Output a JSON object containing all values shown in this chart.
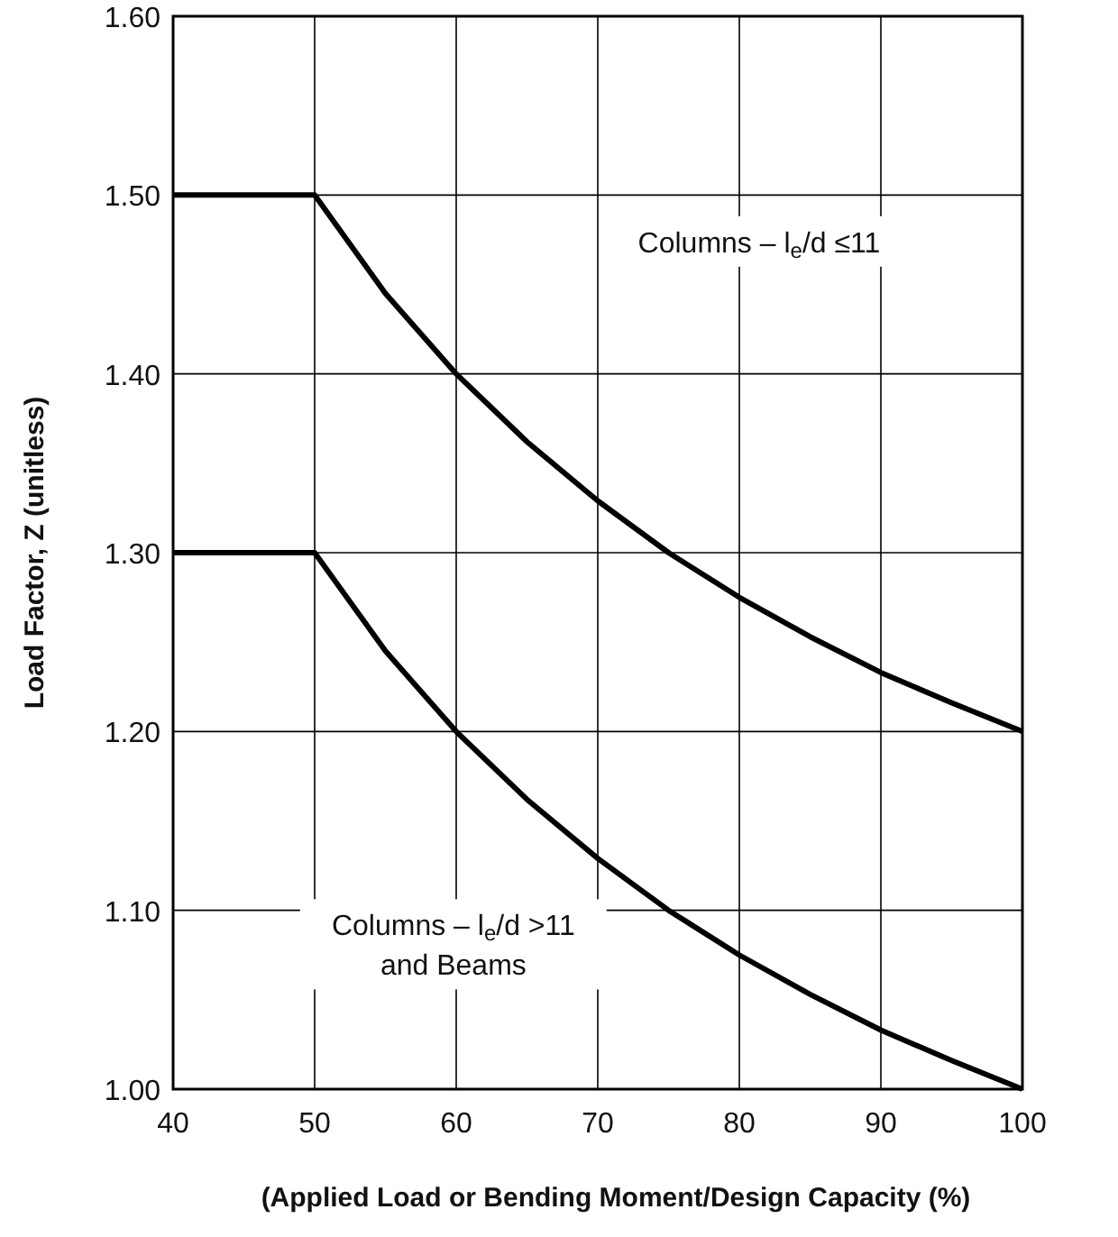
{
  "chart_data": {
    "type": "line",
    "xlabel": "(Applied Load or Bending Moment/Design Capacity (%)",
    "ylabel": "Load Factor, Z (unitless)",
    "x": [
      40,
      50,
      55,
      60,
      65,
      70,
      75,
      80,
      85,
      90,
      95,
      100
    ],
    "series": [
      {
        "color": "#000000",
        "values": [
          1.5,
          1.5,
          1.445,
          1.4,
          1.362,
          1.329,
          1.3,
          1.275,
          1.253,
          1.233,
          1.216,
          1.2
        ]
      },
      {
        "color": "#000000",
        "values": [
          1.3,
          1.3,
          1.245,
          1.2,
          1.162,
          1.129,
          1.1,
          1.075,
          1.053,
          1.033,
          1.016,
          1.0
        ]
      }
    ],
    "xlim": [
      40,
      100
    ],
    "xticks": [
      40,
      50,
      60,
      70,
      80,
      90,
      100
    ],
    "ylim": [
      1.0,
      1.6
    ],
    "yticks": [
      {
        "value": 1.0,
        "label": "1.00"
      },
      {
        "value": 1.1,
        "label": "1.10"
      },
      {
        "value": 1.2,
        "label": "1.20"
      },
      {
        "value": 1.3,
        "label": "1.30"
      },
      {
        "value": 1.4,
        "label": "1.40"
      },
      {
        "value": 1.5,
        "label": "1.50"
      },
      {
        "value": 1.6,
        "label": "1.60"
      }
    ],
    "annotations": [
      "Columns – l$_{e}$/d ≤11",
      "Columns – l$_{e}$/d >11 and Beams"
    ],
    "grid": true,
    "marker": "none",
    "line_style": "solid"
  }
}
